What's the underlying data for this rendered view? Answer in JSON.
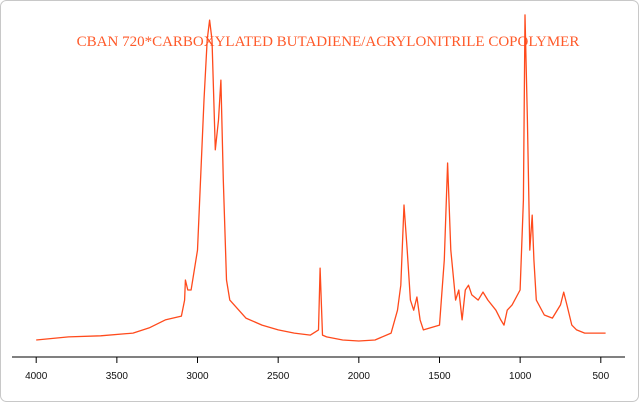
{
  "chart_data": {
    "type": "line",
    "title": "CBAN 720*CARBOXYLATED BUTADIENE/ACRYLONITRILE COPOLYMER",
    "color": "#ff4a1c",
    "xlim": [
      4150,
      350
    ],
    "ylim": [
      0,
      100
    ],
    "xticks": [
      4000,
      3500,
      3000,
      2500,
      2000,
      1500,
      1000,
      500
    ],
    "x": [
      4000,
      3800,
      3600,
      3400,
      3300,
      3200,
      3100,
      3080,
      3075,
      3060,
      3040,
      3000,
      2960,
      2940,
      2925,
      2910,
      2890,
      2870,
      2855,
      2840,
      2820,
      2800,
      2700,
      2600,
      2500,
      2400,
      2300,
      2250,
      2240,
      2225,
      2200,
      2100,
      2000,
      1900,
      1800,
      1760,
      1740,
      1720,
      1700,
      1680,
      1660,
      1640,
      1620,
      1600,
      1500,
      1470,
      1450,
      1430,
      1400,
      1380,
      1360,
      1340,
      1320,
      1300,
      1260,
      1230,
      1200,
      1150,
      1120,
      1100,
      1080,
      1050,
      1000,
      980,
      970,
      955,
      940,
      925,
      915,
      900,
      850,
      800,
      750,
      730,
      710,
      680,
      650,
      600,
      500,
      470
    ],
    "values": [
      4.9,
      5.8,
      6.1,
      6.9,
      8.4,
      10.7,
      11.8,
      16.4,
      22.2,
      19.3,
      19.3,
      30.8,
      74.1,
      91.4,
      97.1,
      91.4,
      59.7,
      68.3,
      79.8,
      51.0,
      22.2,
      16.4,
      11.2,
      9.2,
      7.8,
      6.9,
      6.3,
      7.8,
      25.6,
      6.3,
      5.8,
      4.9,
      4.6,
      4.9,
      6.9,
      13.5,
      20.7,
      43.8,
      30.8,
      16.4,
      13.5,
      17.3,
      10.7,
      7.8,
      9.2,
      28.0,
      55.9,
      30.8,
      16.4,
      19.3,
      10.7,
      19.3,
      20.7,
      17.9,
      16.4,
      18.7,
      16.4,
      13.5,
      10.7,
      9.2,
      13.5,
      15.0,
      19.3,
      45.2,
      98.6,
      68.3,
      30.8,
      40.9,
      28.0,
      16.4,
      12.1,
      11.2,
      15.0,
      18.7,
      15.0,
      9.2,
      7.8,
      6.9,
      6.9,
      6.9
    ]
  }
}
